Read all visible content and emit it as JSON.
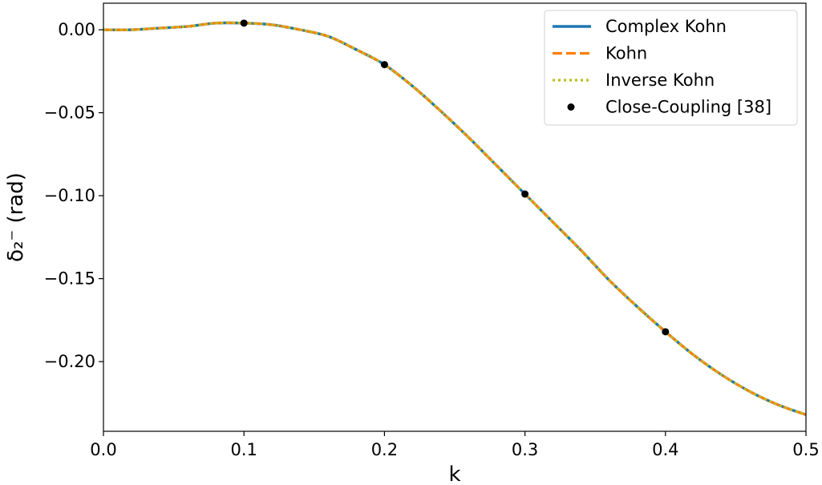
{
  "chart_data": {
    "type": "line",
    "xlabel": "k",
    "ylabel": "δ₂⁻ (rad)",
    "xlim": [
      0.0,
      0.5
    ],
    "ylim": [
      -0.242,
      0.016
    ],
    "x_ticks": [
      "0.0",
      "0.1",
      "0.2",
      "0.3",
      "0.4",
      "0.5"
    ],
    "y_ticks": [
      "0.00",
      "−0.05",
      "−0.10",
      "−0.15",
      "−0.20"
    ],
    "grid": false,
    "legend_position": "top-right",
    "series": [
      {
        "name": "Complex Kohn",
        "style": "solid",
        "color": "#1f77b4",
        "x": [
          0.0,
          0.02,
          0.04,
          0.06,
          0.08,
          0.1,
          0.12,
          0.14,
          0.16,
          0.18,
          0.2,
          0.22,
          0.24,
          0.26,
          0.28,
          0.3,
          0.32,
          0.34,
          0.36,
          0.38,
          0.4,
          0.42,
          0.44,
          0.46,
          0.48,
          0.5
        ],
        "y": [
          0.0,
          0.0,
          0.001,
          0.002,
          0.004,
          0.004,
          0.003,
          0.0,
          -0.004,
          -0.012,
          -0.021,
          -0.034,
          -0.049,
          -0.065,
          -0.082,
          -0.099,
          -0.116,
          -0.133,
          -0.151,
          -0.167,
          -0.182,
          -0.196,
          -0.208,
          -0.218,
          -0.226,
          -0.232
        ]
      },
      {
        "name": "Kohn",
        "style": "dashed",
        "color": "#ff7f0e",
        "x": [
          0.0,
          0.02,
          0.04,
          0.06,
          0.08,
          0.1,
          0.12,
          0.14,
          0.16,
          0.18,
          0.2,
          0.22,
          0.24,
          0.26,
          0.28,
          0.3,
          0.32,
          0.34,
          0.36,
          0.38,
          0.4,
          0.42,
          0.44,
          0.46,
          0.48,
          0.5
        ],
        "y": [
          0.0,
          0.0,
          0.001,
          0.002,
          0.004,
          0.004,
          0.003,
          0.0,
          -0.004,
          -0.012,
          -0.021,
          -0.034,
          -0.049,
          -0.065,
          -0.082,
          -0.099,
          -0.116,
          -0.133,
          -0.151,
          -0.167,
          -0.182,
          -0.196,
          -0.208,
          -0.218,
          -0.226,
          -0.232
        ]
      },
      {
        "name": "Inverse Kohn",
        "style": "dotted",
        "color": "#bcbd22",
        "x": [
          0.0,
          0.02,
          0.04,
          0.06,
          0.08,
          0.1,
          0.12,
          0.14,
          0.16,
          0.18,
          0.2,
          0.22,
          0.24,
          0.26,
          0.28,
          0.3,
          0.32,
          0.34,
          0.36,
          0.38,
          0.4,
          0.42,
          0.44,
          0.46,
          0.48,
          0.5
        ],
        "y": [
          0.0,
          0.0,
          0.001,
          0.002,
          0.004,
          0.004,
          0.003,
          0.0,
          -0.004,
          -0.012,
          -0.021,
          -0.034,
          -0.049,
          -0.065,
          -0.082,
          -0.099,
          -0.116,
          -0.133,
          -0.151,
          -0.167,
          -0.182,
          -0.196,
          -0.208,
          -0.218,
          -0.226,
          -0.232
        ]
      },
      {
        "name": "Close-Coupling [38]",
        "style": "markers",
        "color": "#000000",
        "x": [
          0.1,
          0.2,
          0.3,
          0.4
        ],
        "y": [
          0.004,
          -0.021,
          -0.099,
          -0.182
        ]
      }
    ]
  }
}
